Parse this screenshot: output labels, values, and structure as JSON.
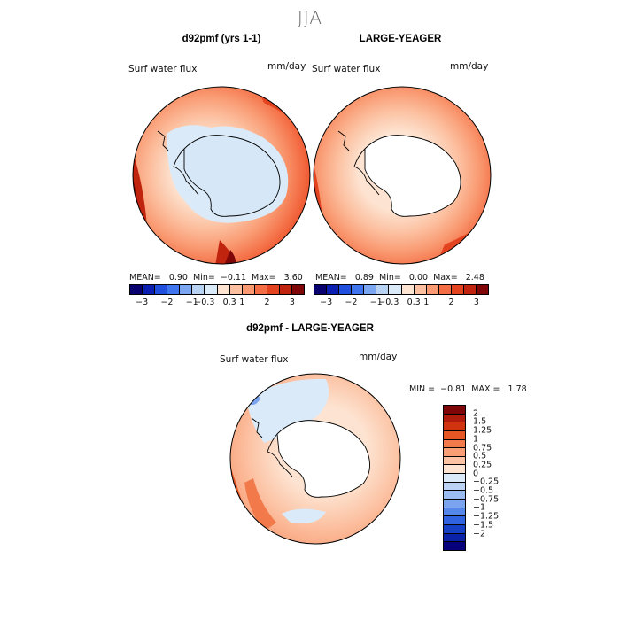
{
  "season_title": "JJA",
  "left_panel": {
    "title": "d92pmf (yrs 1-1)",
    "variable": "Surf water flux",
    "units": "mm/day",
    "stats": "MEAN=   0.90  Min=  −0.11  Max=   3.60"
  },
  "right_panel": {
    "title": "LARGE-YEAGER",
    "variable": "Surf water flux",
    "units": "mm/day",
    "stats": "MEAN=   0.89  Min=   0.00  Max=   2.48"
  },
  "diff_panel": {
    "title": "d92pmf - LARGE-YEAGER",
    "variable": "Surf water flux",
    "units": "mm/day",
    "minmax": "MIN =  −0.81  MAX =   1.78"
  },
  "colors": {
    "top_colorbar": [
      "#08006e",
      "#0a1fb0",
      "#1f4fdc",
      "#3f76ef",
      "#7aa6f2",
      "#b8d2f4",
      "#dbeaf8",
      "#fde4d2",
      "#fcc0a0",
      "#f99a72",
      "#f46d44",
      "#e4431f",
      "#c0240e",
      "#7e0606"
    ],
    "diff_colorbar": [
      "#7e0606",
      "#b01b0c",
      "#d2330f",
      "#e65524",
      "#f2794a",
      "#f99d74",
      "#fcc2a3",
      "#fde4d2",
      "#dbeaf8",
      "#bbd4f5",
      "#9bbcf3",
      "#7aa4f0",
      "#5586ea",
      "#2f63df",
      "#1440c6",
      "#0a22a8",
      "#06007a"
    ],
    "land_fill": "#ffffff",
    "left_land_fill": "#d6e8f8"
  },
  "top_colorbar_ticks": [
    "−3",
    "−2",
    "−1",
    "−0.3",
    "0.3",
    "1",
    "2",
    "3"
  ],
  "diff_colorbar_labels": [
    "2",
    "1.5",
    "1.25",
    "1",
    "0.75",
    "0.5",
    "0.25",
    "0",
    "−0.25",
    "−0.5",
    "−0.75",
    "−1",
    "−1.25",
    "−1.5",
    "−2"
  ]
}
